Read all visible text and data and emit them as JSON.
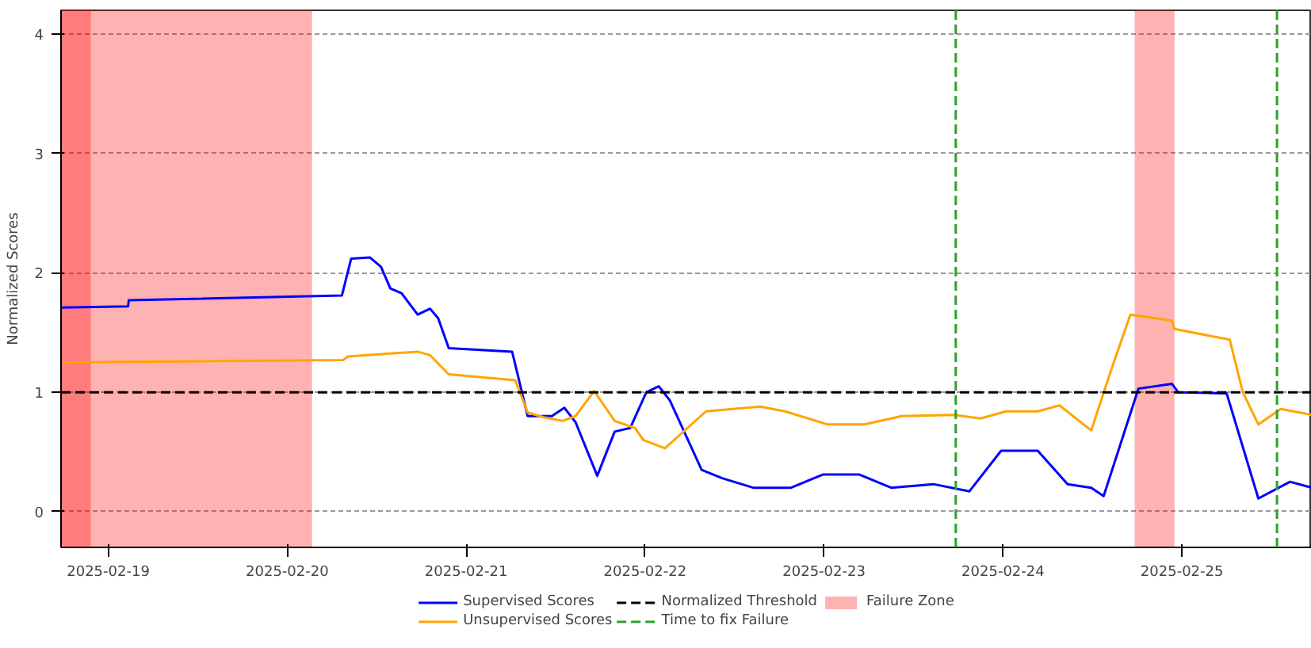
{
  "chart_data": {
    "type": "line",
    "ylabel": "Normalized Scores",
    "xlim": [
      "2025-02-18T17:40",
      "2025-02-25T17:25"
    ],
    "ylim": [
      -0.3,
      4.2
    ],
    "xticks": [
      "2025-02-19",
      "2025-02-20",
      "2025-02-21",
      "2025-02-22",
      "2025-02-23",
      "2025-02-24",
      "2025-02-25"
    ],
    "yticks": [
      0,
      1,
      2,
      3,
      4
    ],
    "grid": "y",
    "legend": "bottom",
    "line_style": "solid",
    "marker": "none",
    "series": [
      {
        "name": "Supervised Scores",
        "color": "#0000ff",
        "x": [
          "2025-02-18T17:40",
          "2025-02-19T02:40",
          "2025-02-19T02:45",
          "2025-02-20T07:20",
          "2025-02-20T08:35",
          "2025-02-20T11:05",
          "2025-02-20T12:35",
          "2025-02-20T13:50",
          "2025-02-20T15:20",
          "2025-02-20T17:30",
          "2025-02-20T19:10",
          "2025-02-20T20:15",
          "2025-02-20T21:40",
          "2025-02-21T06:10",
          "2025-02-21T08:15",
          "2025-02-21T11:30",
          "2025-02-21T13:10",
          "2025-02-21T14:40",
          "2025-02-21T17:35",
          "2025-02-21T19:55",
          "2025-02-21T22:00",
          "2025-02-22T00:10",
          "2025-02-22T01:50",
          "2025-02-22T03:20",
          "2025-02-22T07:35",
          "2025-02-22T10:20",
          "2025-02-22T14:30",
          "2025-02-22T19:35",
          "2025-02-22T23:50",
          "2025-02-23T04:45",
          "2025-02-23T09:00",
          "2025-02-23T14:40",
          "2025-02-23T19:30",
          "2025-02-23T23:45",
          "2025-02-24T04:40",
          "2025-02-24T08:40",
          "2025-02-24T11:50",
          "2025-02-24T13:30",
          "2025-02-24T18:10",
          "2025-02-24T22:40",
          "2025-02-24T23:30",
          "2025-02-25T06:00",
          "2025-02-25T10:15",
          "2025-02-25T14:30",
          "2025-02-25T17:25"
        ],
        "values": [
          1.71,
          1.72,
          1.77,
          1.81,
          2.12,
          2.13,
          2.05,
          1.87,
          1.83,
          1.65,
          1.7,
          1.62,
          1.37,
          1.34,
          0.8,
          0.8,
          0.87,
          0.75,
          0.3,
          0.67,
          0.7,
          1.0,
          1.05,
          0.93,
          0.35,
          0.28,
          0.2,
          0.2,
          0.31,
          0.31,
          0.2,
          0.23,
          0.17,
          0.51,
          0.51,
          0.23,
          0.2,
          0.13,
          1.03,
          1.07,
          1.0,
          0.99,
          0.11,
          0.25,
          0.2
        ]
      },
      {
        "name": "Unsupervised Scores",
        "color": "#ffa500",
        "x": [
          "2025-02-18T17:40",
          "2025-02-20T07:30",
          "2025-02-20T08:10",
          "2025-02-20T17:30",
          "2025-02-20T19:10",
          "2025-02-20T21:40",
          "2025-02-21T06:35",
          "2025-02-21T08:15",
          "2025-02-21T10:25",
          "2025-02-21T12:55",
          "2025-02-21T14:40",
          "2025-02-21T17:10",
          "2025-02-21T19:55",
          "2025-02-21T22:40",
          "2025-02-21T23:45",
          "2025-02-22T02:40",
          "2025-02-22T08:10",
          "2025-02-22T15:25",
          "2025-02-22T18:45",
          "2025-02-23T00:30",
          "2025-02-23T05:25",
          "2025-02-23T10:25",
          "2025-02-23T17:25",
          "2025-02-23T21:00",
          "2025-02-24T00:25",
          "2025-02-24T04:40",
          "2025-02-24T07:35",
          "2025-02-24T11:50",
          "2025-02-24T14:35",
          "2025-02-24T17:05",
          "2025-02-24T22:40",
          "2025-02-24T23:00",
          "2025-02-25T06:25",
          "2025-02-25T08:10",
          "2025-02-25T10:15",
          "2025-02-25T13:15",
          "2025-02-25T17:25"
        ],
        "values": [
          1.25,
          1.27,
          1.3,
          1.34,
          1.31,
          1.15,
          1.1,
          0.83,
          0.79,
          0.76,
          0.8,
          1.01,
          0.76,
          0.7,
          0.6,
          0.53,
          0.84,
          0.88,
          0.84,
          0.73,
          0.73,
          0.8,
          0.81,
          0.78,
          0.84,
          0.84,
          0.89,
          0.68,
          1.2,
          1.65,
          1.6,
          1.53,
          1.44,
          1.0,
          0.73,
          0.86,
          0.81
        ]
      }
    ],
    "ref_lines": [
      {
        "axis": "y",
        "value": 1,
        "label": "Normalized Threshold",
        "color": "#000000",
        "line_style": "dashed"
      },
      {
        "axis": "x",
        "value": "2025-02-23T17:40",
        "label": "Time to fix Failure",
        "color": "#2ca02c",
        "line_style": "dashed"
      },
      {
        "axis": "x",
        "value": "2025-02-25T12:45",
        "color": "#2ca02c",
        "line_style": "dashed"
      }
    ],
    "bands": [
      {
        "axis": "x",
        "from": "2025-02-18T17:40",
        "to": "2025-02-18T21:40",
        "label": "Failure Zone",
        "color": "#ff0000"
      },
      {
        "axis": "x",
        "from": "2025-02-18T17:40",
        "to": "2025-02-20T03:20",
        "color": "#ff0000"
      },
      {
        "axis": "x",
        "from": "2025-02-24T17:40",
        "to": "2025-02-24T23:00",
        "color": "#ff0000"
      }
    ]
  }
}
